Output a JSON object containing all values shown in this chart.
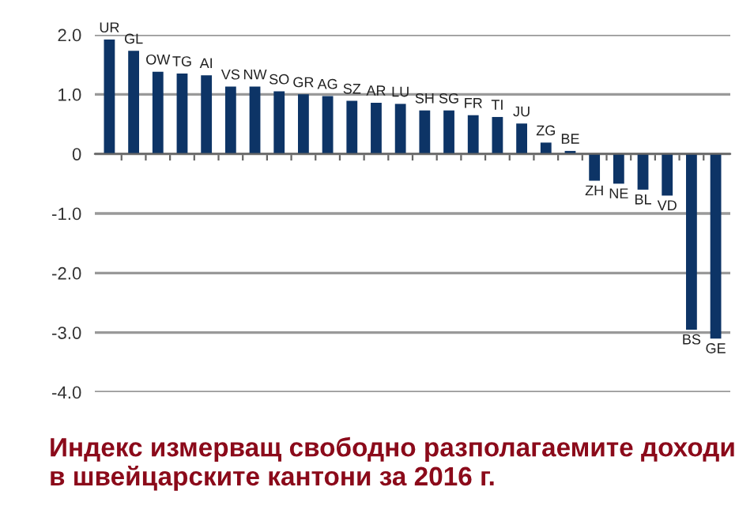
{
  "chart_data": {
    "type": "bar",
    "title": "Индекс измерващ свободно разполагаемите доходи в швейцарските кантони за 2016 г.",
    "categories": [
      "UR",
      "GL",
      "OW",
      "TG",
      "AI",
      "VS",
      "NW",
      "SO",
      "GR",
      "AG",
      "SZ",
      "AR",
      "LU",
      "SH",
      "SG",
      "FR",
      "TI",
      "JU",
      "ZG",
      "BE",
      "ZH",
      "NE",
      "BL",
      "VD",
      "BS",
      "GE"
    ],
    "values": [
      1.92,
      1.73,
      1.38,
      1.35,
      1.32,
      1.13,
      1.13,
      1.05,
      1.0,
      0.97,
      0.89,
      0.86,
      0.84,
      0.73,
      0.73,
      0.65,
      0.62,
      0.51,
      0.19,
      0.05,
      -0.45,
      -0.5,
      -0.6,
      -0.7,
      -2.95,
      -3.1
    ],
    "color": "#0d3466",
    "ylim": [
      -4.0,
      2.0
    ],
    "yticks": [
      {
        "value": 2.0,
        "label": "2.0"
      },
      {
        "value": 1.0,
        "label": "1.0"
      },
      0,
      {
        "value": -1.0,
        "label": "-1.0"
      },
      {
        "value": -2.0,
        "label": "-2.0"
      },
      {
        "value": -3.0,
        "label": "-3.0"
      },
      {
        "value": -4.0,
        "label": "-4.0"
      }
    ],
    "grid": "y"
  }
}
